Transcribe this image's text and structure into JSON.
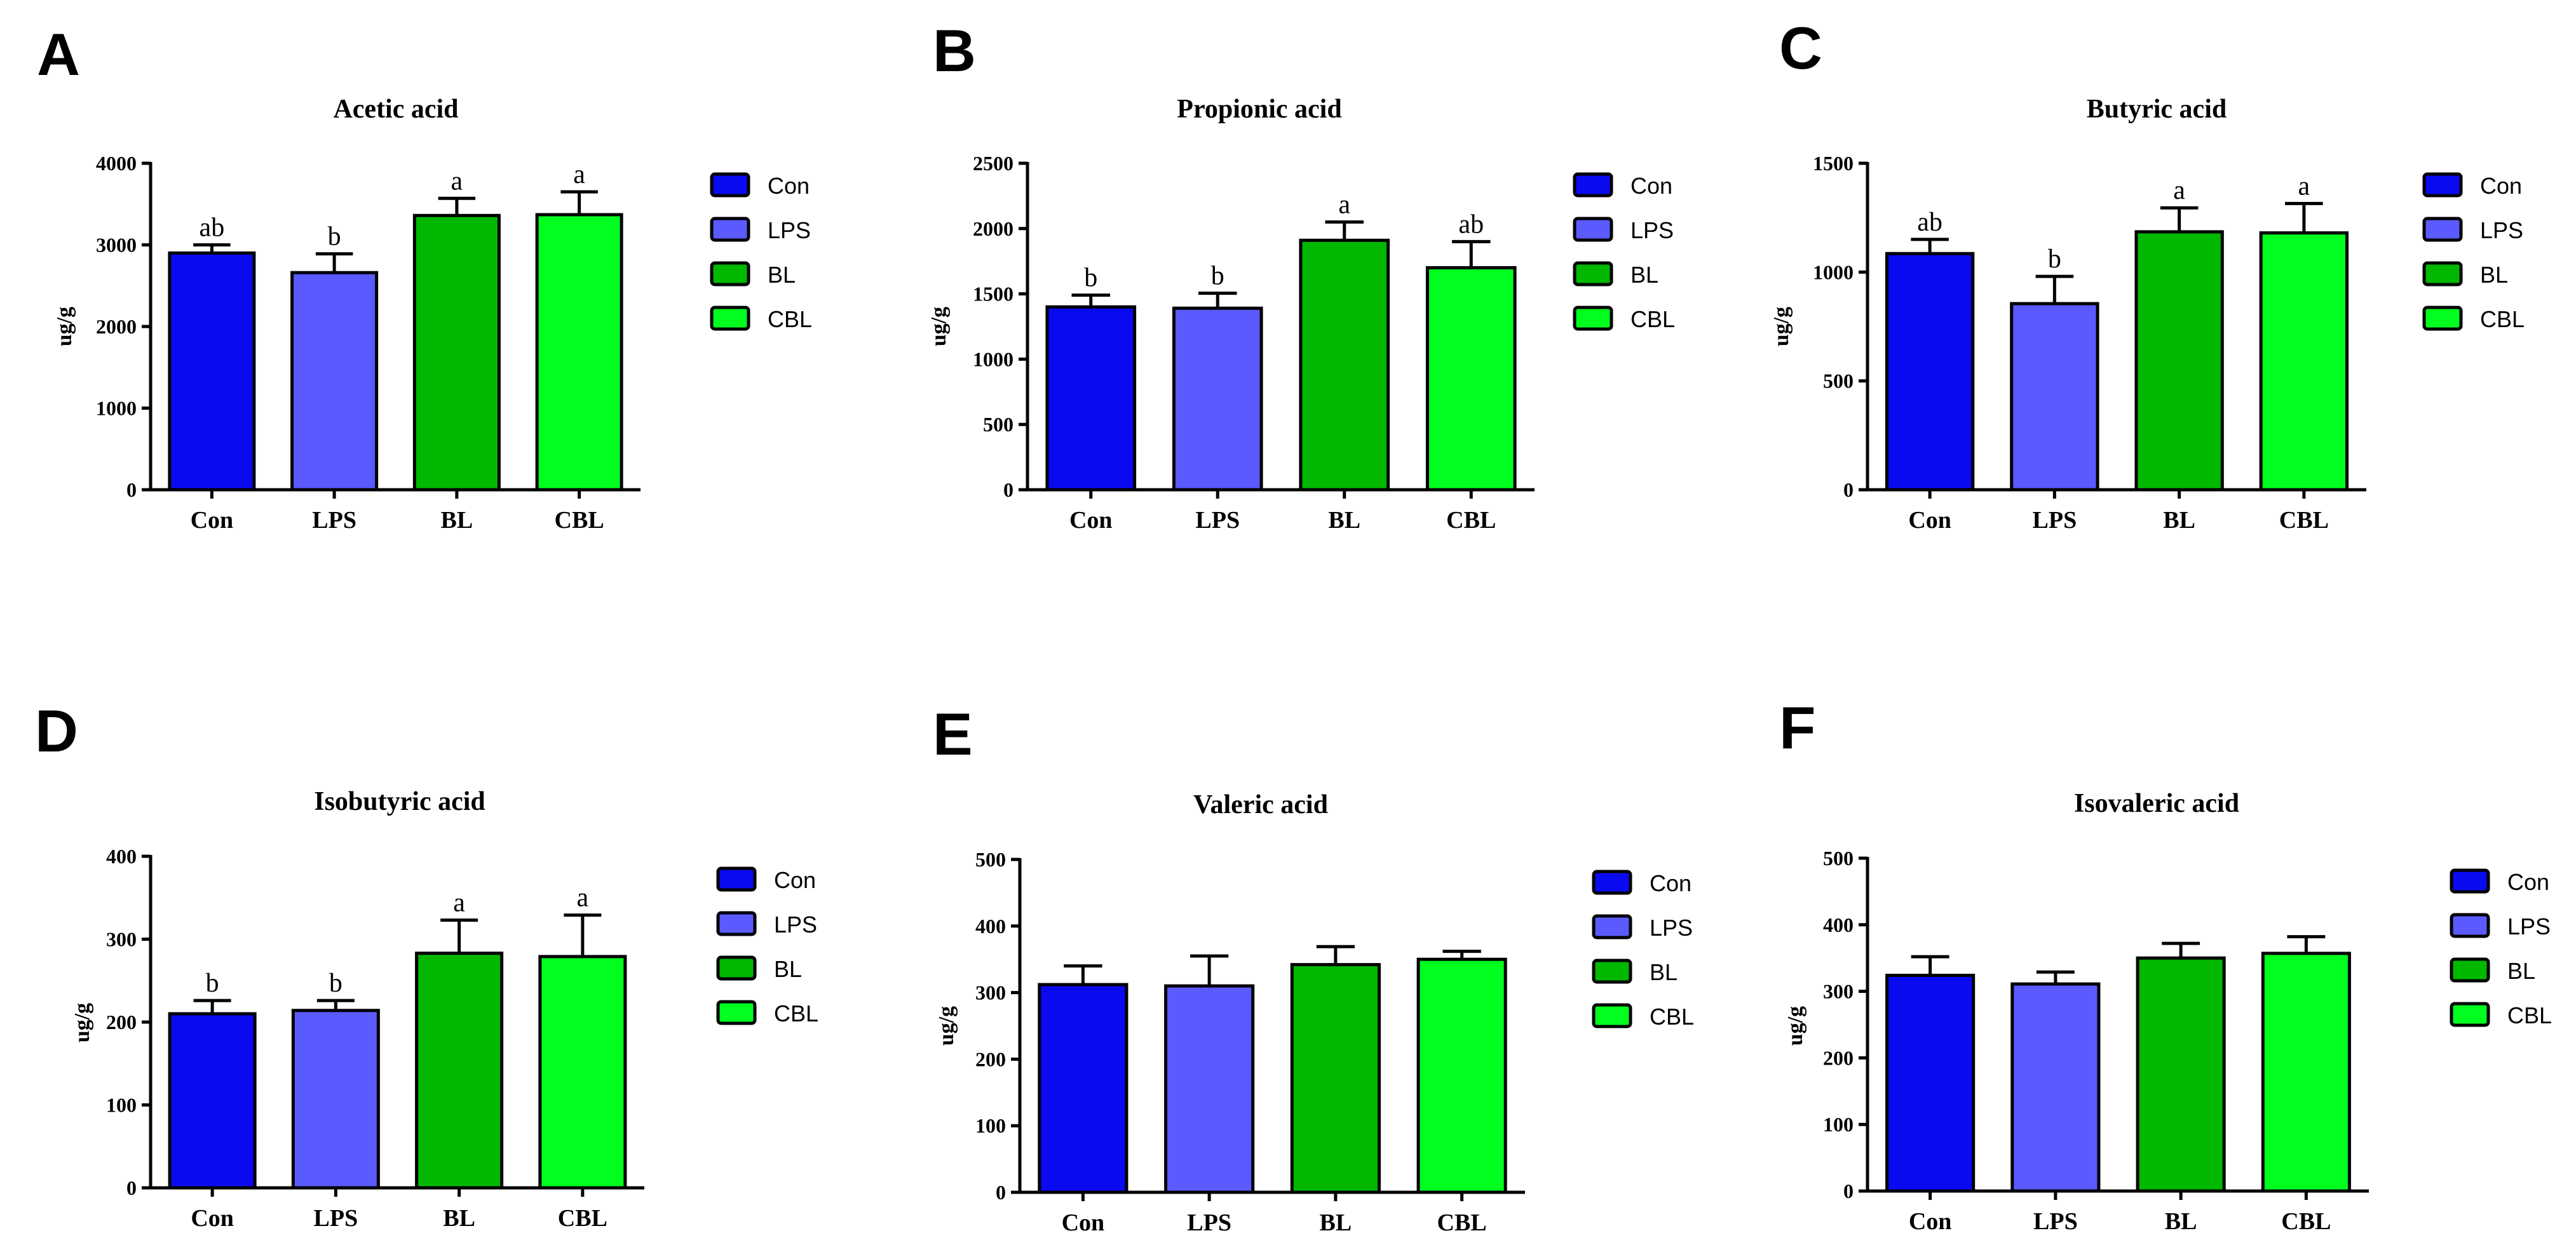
{
  "palette": {
    "Con": "#0a0af0",
    "LPS": "#5a5aff",
    "BL": "#00b800",
    "CBL": "#00ff1e"
  },
  "chart_data": [
    {
      "panel": "A",
      "type": "bar",
      "title": "Acetic acid",
      "xlabel": "",
      "ylabel": "ug/g",
      "ylim": [
        0,
        4000
      ],
      "yticks": [
        0,
        1000,
        2000,
        3000,
        4000
      ],
      "categories": [
        "Con",
        "LPS",
        "BL",
        "CBL"
      ],
      "values": [
        2900,
        2660,
        3360,
        3370
      ],
      "errors": [
        100,
        230,
        210,
        280
      ],
      "significance": [
        "ab",
        "b",
        "a",
        "a"
      ],
      "legend": [
        "Con",
        "LPS",
        "BL",
        "CBL"
      ]
    },
    {
      "panel": "B",
      "type": "bar",
      "title": "Propionic acid",
      "xlabel": "",
      "ylabel": "ug/g",
      "ylim": [
        0,
        2500
      ],
      "yticks": [
        0,
        500,
        1000,
        1500,
        2000,
        2500
      ],
      "categories": [
        "Con",
        "LPS",
        "BL",
        "CBL"
      ],
      "values": [
        1400,
        1390,
        1910,
        1700
      ],
      "errors": [
        90,
        115,
        140,
        200
      ],
      "significance": [
        "b",
        "b",
        "a",
        "ab"
      ],
      "legend": [
        "Con",
        "LPS",
        "BL",
        "CBL"
      ]
    },
    {
      "panel": "C",
      "type": "bar",
      "title": "Butyric acid",
      "xlabel": "",
      "ylabel": "ug/g",
      "ylim": [
        0,
        1500
      ],
      "yticks": [
        0,
        500,
        1000,
        1500
      ],
      "categories": [
        "Con",
        "LPS",
        "BL",
        "CBL"
      ],
      "values": [
        1085,
        855,
        1185,
        1180
      ],
      "errors": [
        65,
        125,
        110,
        135
      ],
      "significance": [
        "ab",
        "b",
        "a",
        "a"
      ],
      "legend": [
        "Con",
        "LPS",
        "BL",
        "CBL"
      ]
    },
    {
      "panel": "D",
      "type": "bar",
      "title": "Isobutyric acid",
      "xlabel": "",
      "ylabel": "ug/g",
      "ylim": [
        0,
        400
      ],
      "yticks": [
        0,
        100,
        200,
        300,
        400
      ],
      "categories": [
        "Con",
        "LPS",
        "BL",
        "CBL"
      ],
      "values": [
        210,
        214,
        283,
        279
      ],
      "errors": [
        16,
        12,
        40,
        50
      ],
      "significance": [
        "b",
        "b",
        "a",
        "a"
      ],
      "legend": [
        "Con",
        "LPS",
        "BL",
        "CBL"
      ]
    },
    {
      "panel": "E",
      "type": "bar",
      "title": "Valeric acid",
      "xlabel": "",
      "ylabel": "ug/g",
      "ylim": [
        0,
        500
      ],
      "yticks": [
        0,
        100,
        200,
        300,
        400,
        500
      ],
      "categories": [
        "Con",
        "LPS",
        "BL",
        "CBL"
      ],
      "values": [
        312,
        310,
        342,
        350
      ],
      "errors": [
        28,
        45,
        27,
        12
      ],
      "significance": [
        "",
        "",
        "",
        ""
      ],
      "legend": [
        "Con",
        "LPS",
        "BL",
        "CBL"
      ]
    },
    {
      "panel": "F",
      "type": "bar",
      "title": "Isovaleric acid",
      "xlabel": "",
      "ylabel": "ug/g",
      "ylim": [
        0,
        500
      ],
      "yticks": [
        0,
        100,
        200,
        300,
        400,
        500
      ],
      "categories": [
        "Con",
        "LPS",
        "BL",
        "CBL"
      ],
      "values": [
        324,
        311,
        350,
        357
      ],
      "errors": [
        28,
        18,
        22,
        25
      ],
      "significance": [
        "",
        "",
        "",
        ""
      ],
      "legend": [
        "Con",
        "LPS",
        "BL",
        "CBL"
      ]
    }
  ]
}
